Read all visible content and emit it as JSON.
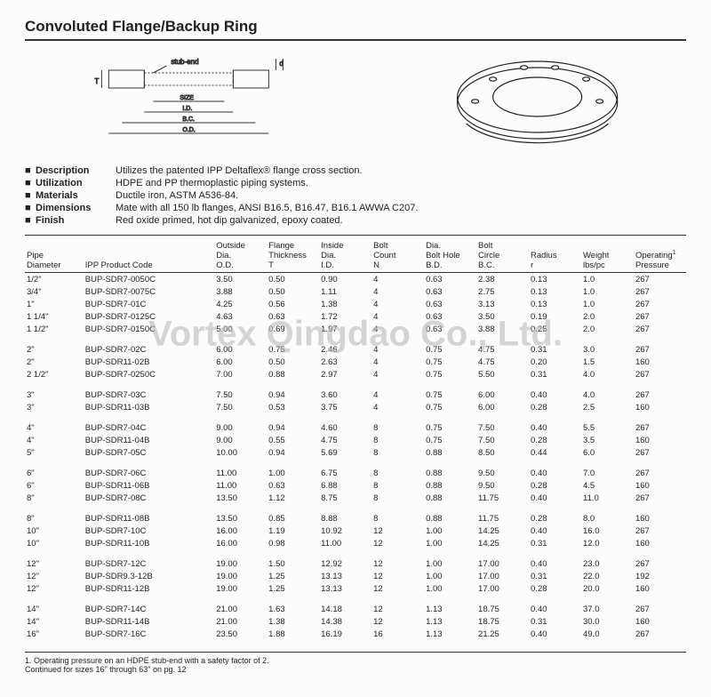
{
  "title": "Convoluted Flange/Backup Ring",
  "watermark": "Vortex Qingdao Co., Ltd.",
  "diagram": {
    "labels": {
      "stub_end": "stub-end",
      "d": "d",
      "T": "T",
      "size": "SIZE",
      "id": "I.D.",
      "bc": "B.C.",
      "od": "O.D."
    }
  },
  "specs": [
    {
      "label": "Description",
      "value": "Utilizes the patented IPP Deltaflex® flange cross section."
    },
    {
      "label": "Utilization",
      "value": "HDPE and PP thermoplastic piping systems."
    },
    {
      "label": "Materials",
      "value": "Ductile iron, ASTM A536-84."
    },
    {
      "label": "Dimensions",
      "value": "Mate with all 150 lb flanges, ANSI B16.5, B16.47, B16.1 AWWA C207."
    },
    {
      "label": "Finish",
      "value": "Red oxide primed, hot dip galvanized, epoxy coated."
    }
  ],
  "table": {
    "columns": [
      {
        "h1": "Pipe",
        "h2": "Diameter"
      },
      {
        "h1": "",
        "h2": "IPP Product Code"
      },
      {
        "h1": "Outside",
        "h2": "Dia.",
        "h3": "O.D."
      },
      {
        "h1": "Flange",
        "h2": "Thickness",
        "h3": "T"
      },
      {
        "h1": "Inside",
        "h2": "Dia.",
        "h3": "I.D."
      },
      {
        "h1": "Bolt",
        "h2": "Count",
        "h3": "N"
      },
      {
        "h1": "Dia.",
        "h2": "Bolt Hole",
        "h3": "B.D."
      },
      {
        "h1": "Bolt",
        "h2": "Circle",
        "h3": "B.C."
      },
      {
        "h1": "Radius",
        "h2": "r"
      },
      {
        "h1": "Weight",
        "h2": "lbs/pc"
      },
      {
        "h1": "Operating",
        "h2": "Pressure",
        "sup": "1"
      }
    ],
    "groups": [
      [
        [
          "1/2\"",
          "BUP-SDR7-0050C",
          "3.50",
          "0.50",
          "0.90",
          "4",
          "0.63",
          "2.38",
          "0.13",
          "1.0",
          "267"
        ],
        [
          "3/4\"",
          "BUP-SDR7-0075C",
          "3.88",
          "0.50",
          "1.11",
          "4",
          "0.63",
          "2.75",
          "0.13",
          "1.0",
          "267"
        ],
        [
          "1\"",
          "BUP-SDR7-01C",
          "4.25",
          "0.56",
          "1.38",
          "4",
          "0.63",
          "3.13",
          "0.13",
          "1.0",
          "267"
        ],
        [
          "1 1/4\"",
          "BUP-SDR7-0125C",
          "4.63",
          "0.63",
          "1.72",
          "4",
          "0.63",
          "3.50",
          "0.19",
          "2.0",
          "267"
        ],
        [
          "1 1/2\"",
          "BUP-SDR7-0150C",
          "5.00",
          "0.69",
          "1.97",
          "4",
          "0.63",
          "3.88",
          "0.25",
          "2.0",
          "267"
        ]
      ],
      [
        [
          "2\"",
          "BUP-SDR7-02C",
          "6.00",
          "0.75",
          "2.46",
          "4",
          "0.75",
          "4.75",
          "0.31",
          "3.0",
          "267"
        ],
        [
          "2\"",
          "BUP-SDR11-02B",
          "6.00",
          "0.50",
          "2.63",
          "4",
          "0.75",
          "4.75",
          "0.20",
          "1.5",
          "160"
        ],
        [
          "2 1/2\"",
          "BUP-SDR7-0250C",
          "7.00",
          "0.88",
          "2.97",
          "4",
          "0.75",
          "5.50",
          "0.31",
          "4.0",
          "267"
        ]
      ],
      [
        [
          "3\"",
          "BUP-SDR7-03C",
          "7.50",
          "0.94",
          "3.60",
          "4",
          "0.75",
          "6.00",
          "0.40",
          "4.0",
          "267"
        ],
        [
          "3\"",
          "BUP-SDR11-03B",
          "7.50",
          "0.53",
          "3.75",
          "4",
          "0.75",
          "6.00",
          "0.28",
          "2.5",
          "160"
        ]
      ],
      [
        [
          "4\"",
          "BUP-SDR7-04C",
          "9.00",
          "0.94",
          "4.60",
          "8",
          "0.75",
          "7.50",
          "0.40",
          "5.5",
          "267"
        ],
        [
          "4\"",
          "BUP-SDR11-04B",
          "9.00",
          "0.55",
          "4.75",
          "8",
          "0.75",
          "7.50",
          "0.28",
          "3.5",
          "160"
        ],
        [
          "5\"",
          "BUP-SDR7-05C",
          "10.00",
          "0.94",
          "5.69",
          "8",
          "0.88",
          "8.50",
          "0.44",
          "6.0",
          "267"
        ]
      ],
      [
        [
          "6\"",
          "BUP-SDR7-06C",
          "11.00",
          "1.00",
          "6.75",
          "8",
          "0.88",
          "9.50",
          "0.40",
          "7.0",
          "267"
        ],
        [
          "6\"",
          "BUP-SDR11-06B",
          "11.00",
          "0.63",
          "6.88",
          "8",
          "0.88",
          "9.50",
          "0.28",
          "4.5",
          "160"
        ],
        [
          "8\"",
          "BUP-SDR7-08C",
          "13.50",
          "1.12",
          "8.75",
          "8",
          "0.88",
          "11.75",
          "0.40",
          "11.0",
          "267"
        ]
      ],
      [
        [
          "8\"",
          "BUP-SDR11-08B",
          "13.50",
          "0.85",
          "8.88",
          "8",
          "0.88",
          "11.75",
          "0.28",
          "8.0",
          "160"
        ],
        [
          "10\"",
          "BUP-SDR7-10C",
          "16.00",
          "1.19",
          "10.92",
          "12",
          "1.00",
          "14.25",
          "0.40",
          "16.0",
          "267"
        ],
        [
          "10\"",
          "BUP-SDR11-10B",
          "16.00",
          "0.98",
          "11.00",
          "12",
          "1.00",
          "14.25",
          "0.31",
          "12.0",
          "160"
        ]
      ],
      [
        [
          "12\"",
          "BUP-SDR7-12C",
          "19.00",
          "1.50",
          "12.92",
          "12",
          "1.00",
          "17.00",
          "0.40",
          "23.0",
          "267"
        ],
        [
          "12\"",
          "BUP-SDR9.3-12B",
          "19.00",
          "1.25",
          "13.13",
          "12",
          "1.00",
          "17.00",
          "0.31",
          "22.0",
          "192"
        ],
        [
          "12\"",
          "BUP-SDR11-12B",
          "19.00",
          "1.25",
          "13.13",
          "12",
          "1.00",
          "17.00",
          "0.28",
          "20.0",
          "160"
        ]
      ],
      [
        [
          "14\"",
          "BUP-SDR7-14C",
          "21.00",
          "1.63",
          "14.18",
          "12",
          "1.13",
          "18.75",
          "0.40",
          "37.0",
          "267"
        ],
        [
          "14\"",
          "BUP-SDR11-14B",
          "21.00",
          "1.38",
          "14.38",
          "12",
          "1.13",
          "18.75",
          "0.31",
          "30.0",
          "160"
        ],
        [
          "16\"",
          "BUP-SDR7-16C",
          "23.50",
          "1.88",
          "16.19",
          "16",
          "1.13",
          "21.25",
          "0.40",
          "49.0",
          "267"
        ]
      ]
    ]
  },
  "footnotes": [
    "1. Operating pressure on an HDPE stub-end with a safety factor of 2.",
    "Continued for sizes 16\" through 63\" on pg. 12"
  ]
}
